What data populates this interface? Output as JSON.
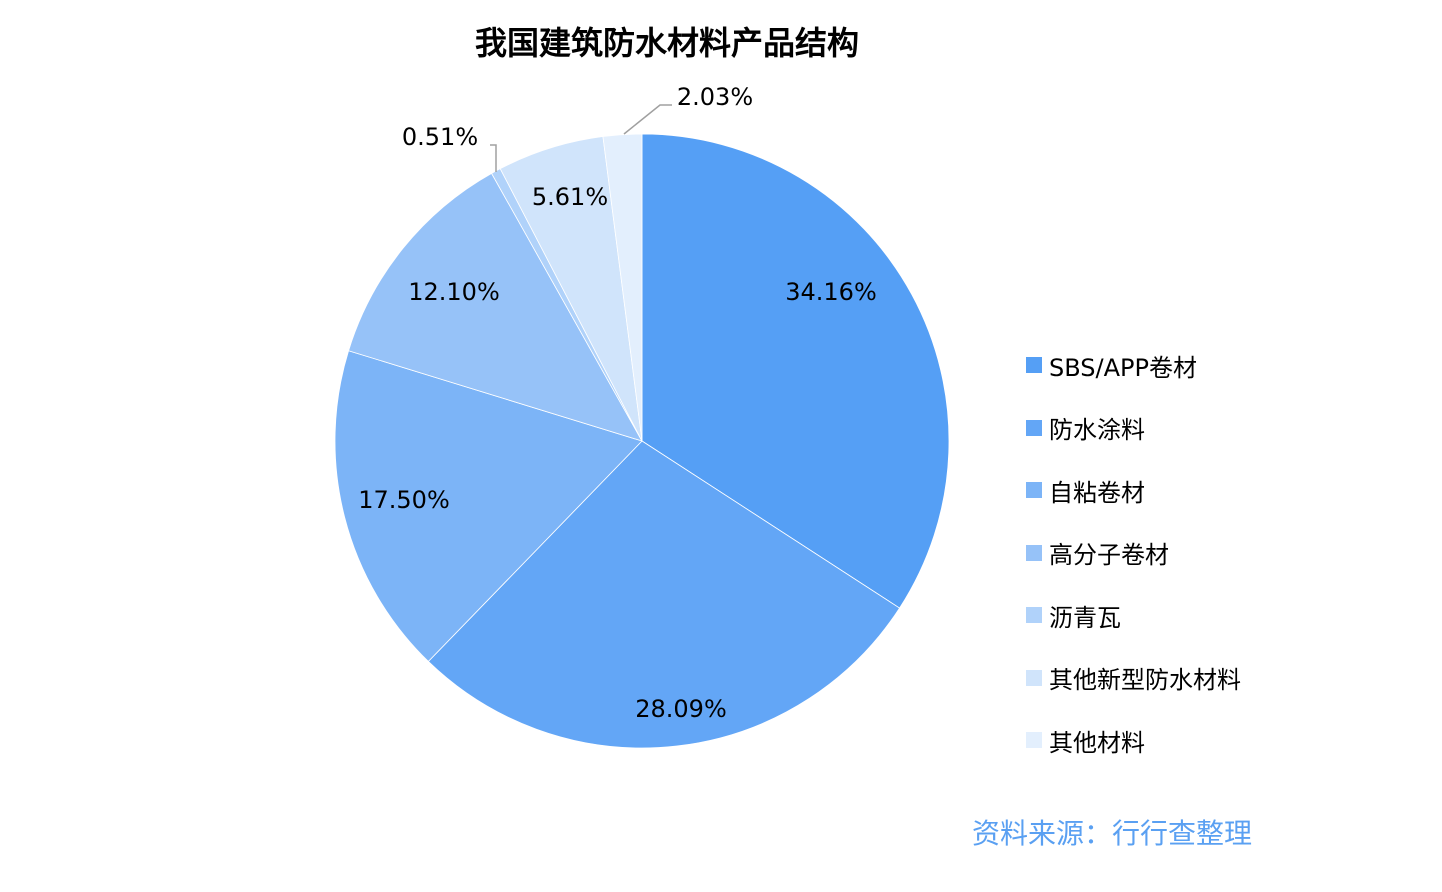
{
  "chart_data": {
    "type": "pie",
    "title": "我国建筑防水材料产品结构",
    "categories": [
      "SBS/APP卷材",
      "防水涂料",
      "自粘卷材",
      "高分子卷材",
      "沥青瓦",
      "其他新型防水材料",
      "其他材料"
    ],
    "values": [
      34.16,
      28.09,
      17.5,
      12.1,
      0.51,
      5.61,
      2.03
    ],
    "labels": [
      "34.16%",
      "28.09%",
      "17.50%",
      "12.10%",
      "0.51%",
      "5.61%",
      "2.03%"
    ],
    "colors": [
      "#559ff5",
      "#63a6f6",
      "#7cb4f7",
      "#96c2f8",
      "#b0d2fa",
      "#d0e4fb",
      "#e3effd"
    ],
    "legend_position": "right",
    "start_angle": "12 o'clock",
    "direction": "clockwise"
  },
  "source": "资料来源：行行查整理"
}
